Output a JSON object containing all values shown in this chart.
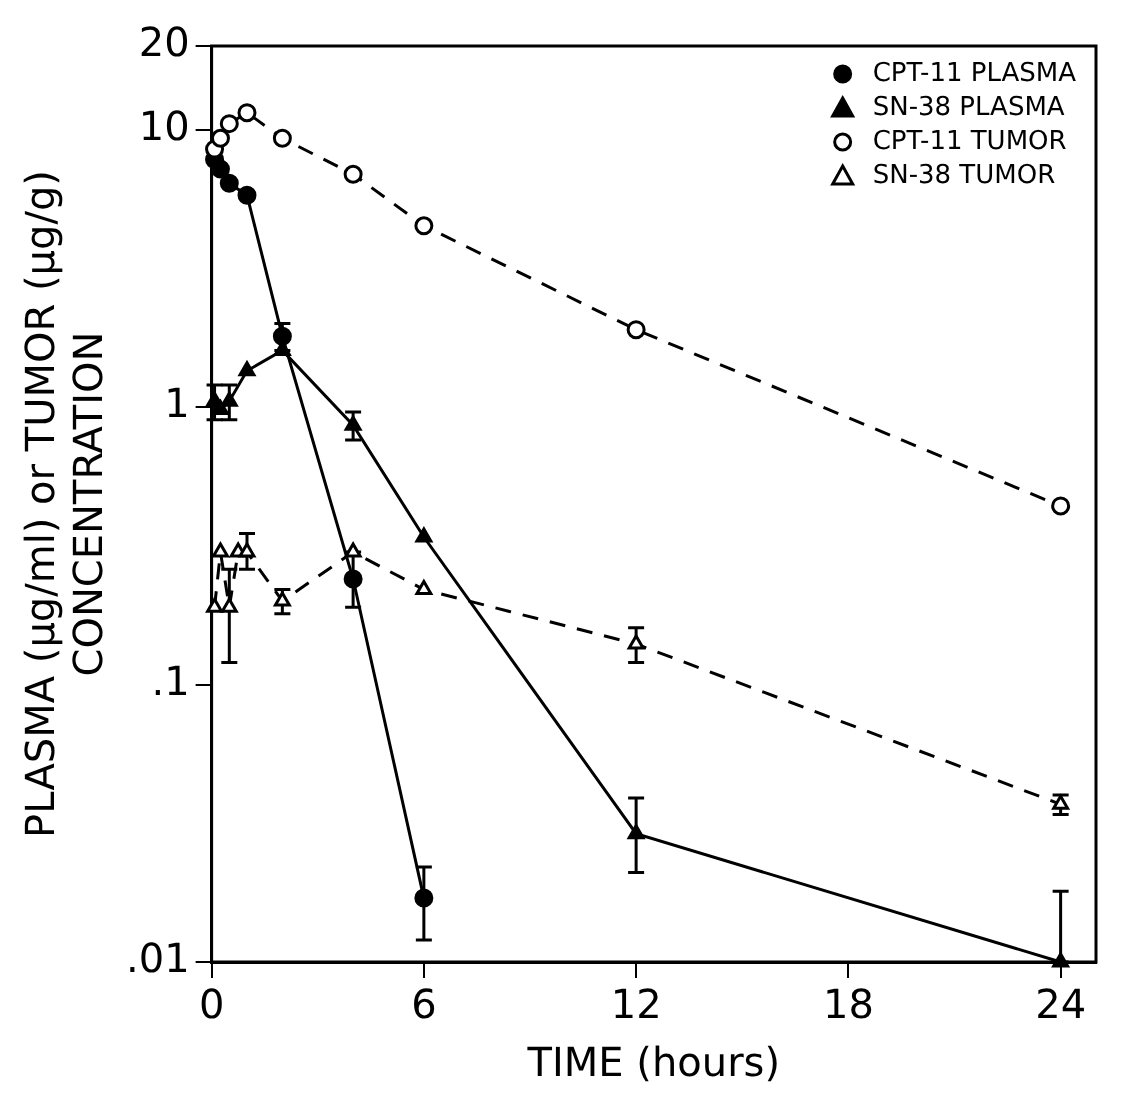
{
  "chart_data": {
    "type": "line",
    "xlabel": "TIME (hours)",
    "ylabel": "PLASMA (µg/ml) or TUMOR (µg/g)\nCONCENTRATION",
    "log": "y",
    "grid": false,
    "legend": "top right",
    "xlim": [
      0,
      25
    ],
    "xticks": [
      0,
      6,
      12,
      18,
      24
    ],
    "ylim": [
      0.01,
      20
    ],
    "yticks": [
      {
        "value": 0.01,
        "label": ".01"
      },
      {
        "value": 0.1,
        "label": ".1"
      },
      1,
      10,
      20
    ],
    "series": [
      {
        "name": "CPT-11 PLASMA",
        "color": "#000000",
        "marker": "circle",
        "line_style": "solid",
        "x": [
          0.083,
          0.25,
          0.5,
          1,
          2,
          4,
          6
        ],
        "values": [
          7.8,
          7.2,
          6.4,
          5.8,
          1.8,
          0.24,
          0.017
        ],
        "errors": [
          null,
          null,
          null,
          null,
          [
            1.6,
            2.0
          ],
          [
            0.19,
            0.3
          ],
          [
            0.012,
            0.022
          ]
        ]
      },
      {
        "name": "SN-38 PLASMA",
        "color": "#000000",
        "marker": "triangle",
        "line_style": "solid",
        "x": [
          0.083,
          0.25,
          0.5,
          1,
          2,
          4,
          6,
          12,
          24
        ],
        "values": [
          1.05,
          0.98,
          1.05,
          1.35,
          1.6,
          0.86,
          0.34,
          0.029,
          0.01
        ],
        "errors": [
          [
            0.9,
            1.2
          ],
          null,
          [
            0.9,
            1.2
          ],
          null,
          null,
          [
            0.76,
            0.96
          ],
          null,
          [
            0.021,
            0.039
          ],
          [
            0.01,
            0.018
          ]
        ]
      },
      {
        "name": "CPT-11 TUMOR",
        "color": "#000000",
        "marker": "circle",
        "line_style": "dashed",
        "x": [
          0.083,
          0.25,
          0.5,
          1,
          2,
          4,
          6,
          12,
          24
        ],
        "values": [
          8.5,
          9.3,
          10.5,
          11.5,
          9.3,
          6.9,
          4.5,
          1.9,
          0.44
        ]
      },
      {
        "name": "SN-38 TUMOR",
        "color": "#000000",
        "marker": "triangle",
        "line_style": "dashed",
        "x": [
          0.083,
          0.25,
          0.5,
          0.75,
          1,
          2,
          4,
          6,
          12,
          24
        ],
        "values": [
          0.19,
          0.3,
          0.19,
          0.3,
          0.3,
          0.2,
          0.3,
          0.22,
          0.14,
          0.037
        ],
        "errors": [
          null,
          null,
          [
            0.12,
            0.26
          ],
          null,
          [
            0.26,
            0.35
          ],
          [
            0.18,
            0.22
          ],
          null,
          null,
          [
            0.12,
            0.16
          ],
          [
            0.034,
            0.04
          ]
        ]
      }
    ]
  }
}
